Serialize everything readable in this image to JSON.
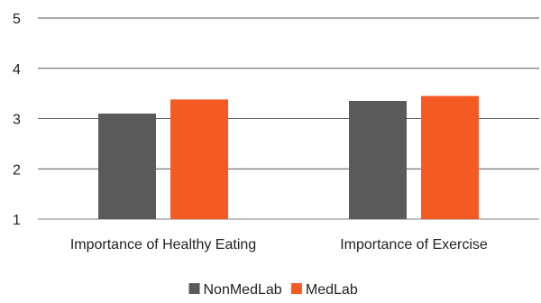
{
  "chart_data": {
    "type": "bar",
    "categories": [
      "Importance of Healthy Eating",
      "Importance of Exercise"
    ],
    "series": [
      {
        "name": "NonMedLab",
        "values": [
          3.1,
          3.35
        ],
        "color": "#5a5a5a"
      },
      {
        "name": "MedLab",
        "values": [
          3.38,
          3.45
        ],
        "color": "#f55a22"
      }
    ],
    "ylim": [
      1,
      5
    ],
    "yticks": [
      "1",
      "2",
      "3",
      "4",
      "5"
    ],
    "grid": true,
    "legend": "bottom-center"
  }
}
